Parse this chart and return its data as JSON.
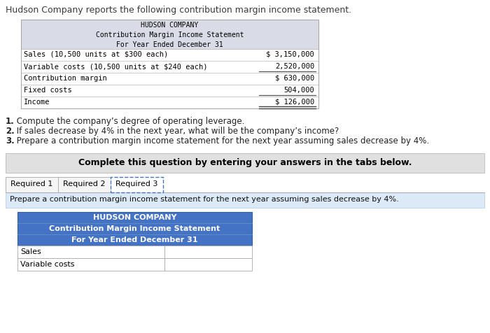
{
  "page_title": "Hudson Company reports the following contribution margin income statement.",
  "top_table": {
    "header_lines": [
      "HUDSON COMPANY",
      "Contribution Margin Income Statement",
      "For Year Ended December 31"
    ],
    "rows": [
      {
        "label": "Sales (10,500 units at $300 each)",
        "value": "$ 3,150,000"
      },
      {
        "label": "Variable costs (10,500 units at $240 each)",
        "value": "2,520,000"
      },
      {
        "label": "Contribution margin",
        "value": "$ 630,000"
      },
      {
        "label": "Fixed costs",
        "value": "504,000"
      },
      {
        "label": "Income",
        "value": "$ 126,000"
      }
    ],
    "header_bg": "#d9dce6",
    "border_color": "#aaaaaa",
    "underline_rows": [
      1,
      3
    ],
    "double_underline_row": 4
  },
  "questions": [
    [
      "1",
      " Compute the company’s degree of operating leverage."
    ],
    [
      "2",
      " If sales decrease by 4% in the next year, what will be the company’s income?"
    ],
    [
      "3",
      " Prepare a contribution margin income statement for the next year assuming sales decrease by 4%."
    ]
  ],
  "complete_box_text": "Complete this question by entering your answers in the tabs below.",
  "complete_box_bg": "#e0e0e0",
  "tabs": [
    "Required 1",
    "Required 2",
    "Required 3"
  ],
  "active_tab": 2,
  "tab_instruction": "Prepare a contribution margin income statement for the next year assuming sales decrease by 4%.",
  "tab_instruction_bg": "#dce9f7",
  "bottom_table": {
    "header_lines": [
      "HUDSON COMPANY",
      "Contribution Margin Income Statement",
      "For Year Ended December 31"
    ],
    "header_bg": "#4472c4",
    "header_text_color": "#ffffff",
    "row_labels": [
      "Sales",
      "Variable costs"
    ],
    "border_color": "#aaaaaa"
  },
  "bg_color": "#ffffff",
  "font_color": "#000000"
}
